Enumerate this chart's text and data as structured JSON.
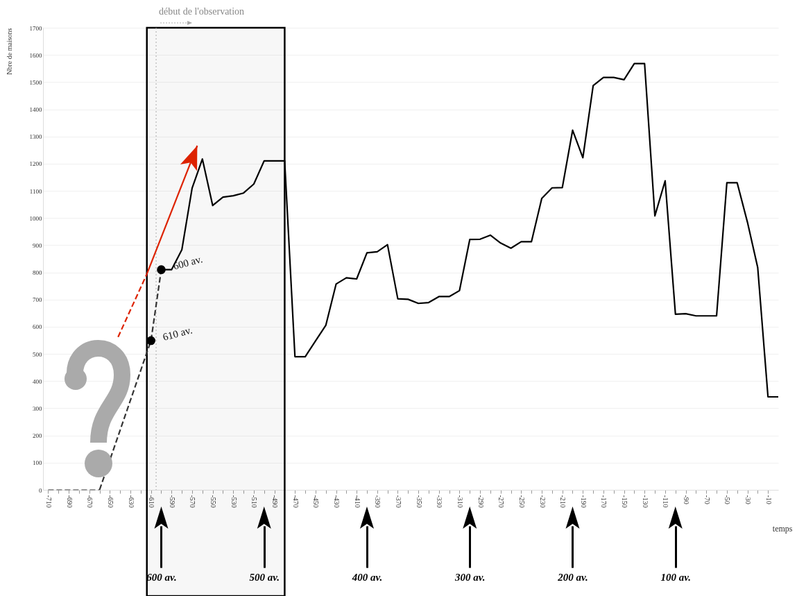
{
  "chart_data": {
    "type": "line",
    "xlabel": "temps",
    "ylabel": "Nbre de maisons",
    "xlim": [
      -715,
      0
    ],
    "ylim": [
      0,
      1700
    ],
    "xticks": [
      -710,
      {
        "value": -700,
        "label": null
      },
      -690,
      {
        "value": -680,
        "label": null
      },
      -670,
      {
        "value": -660,
        "label": null
      },
      -650,
      {
        "value": -640,
        "label": null
      },
      -630,
      {
        "value": -620,
        "label": null
      },
      -610,
      {
        "value": -600,
        "label": null
      },
      -590,
      {
        "value": -580,
        "label": null
      },
      -570,
      {
        "value": -560,
        "label": null
      },
      -550,
      {
        "value": -540,
        "label": null
      },
      -530,
      {
        "value": -520,
        "label": null
      },
      -510,
      {
        "value": -500,
        "label": null
      },
      -490,
      {
        "value": -480,
        "label": null
      },
      -470,
      {
        "value": -460,
        "label": null
      },
      -450,
      {
        "value": -440,
        "label": null
      },
      -430,
      {
        "value": -420,
        "label": null
      },
      -410,
      {
        "value": -400,
        "label": null
      },
      -390,
      {
        "value": -380,
        "label": null
      },
      -370,
      {
        "value": -360,
        "label": null
      },
      -350,
      {
        "value": -340,
        "label": null
      },
      -330,
      {
        "value": -320,
        "label": null
      },
      -310,
      {
        "value": -300,
        "label": null
      },
      -290,
      {
        "value": -280,
        "label": null
      },
      -270,
      {
        "value": -260,
        "label": null
      },
      -250,
      {
        "value": -240,
        "label": null
      },
      -230,
      {
        "value": -220,
        "label": null
      },
      -210,
      {
        "value": -200,
        "label": null
      },
      -190,
      {
        "value": -180,
        "label": null
      },
      -170,
      {
        "value": -160,
        "label": null
      },
      -150,
      {
        "value": -140,
        "label": null
      },
      -130,
      {
        "value": -120,
        "label": null
      },
      -110,
      {
        "value": -100,
        "label": null
      },
      -90,
      {
        "value": -80,
        "label": null
      },
      -70,
      {
        "value": -60,
        "label": null
      },
      -50,
      {
        "value": -40,
        "label": null
      },
      -30,
      {
        "value": -20,
        "label": null
      },
      -10
    ],
    "yticks": [
      0,
      100,
      200,
      300,
      400,
      500,
      600,
      700,
      800,
      900,
      1000,
      1100,
      1200,
      1300,
      1400,
      1500,
      1600,
      1700
    ],
    "grid": "y",
    "series": [
      {
        "color": "#000000",
        "x": [
          -600,
          -590,
          -580,
          -570,
          -560,
          -550,
          -540,
          -530,
          -520,
          -510,
          -500,
          -490,
          -480,
          -470,
          -460,
          -450,
          -440,
          -430,
          -420,
          -410,
          -400,
          -390,
          -380,
          -370,
          -360,
          -350,
          -340,
          -330,
          -320,
          -310,
          -300,
          -290,
          -280,
          -270,
          -260,
          -250,
          -240,
          -230,
          -220,
          -210,
          -200,
          -190,
          -180,
          -170,
          -160,
          -150,
          -140,
          -130,
          -120,
          -110,
          -100,
          -90,
          -80,
          -70,
          -60,
          -50,
          -40,
          -30,
          -20,
          -10,
          0
        ],
        "values": [
          810,
          810,
          883,
          1110,
          1217,
          1046,
          1077,
          1082,
          1092,
          1125,
          1210,
          1210,
          1210,
          490,
          490,
          548,
          605,
          757,
          780,
          776,
          872,
          876,
          902,
          703,
          701,
          686,
          689,
          711,
          711,
          733,
          921,
          922,
          937,
          908,
          889,
          913,
          913,
          1072,
          1111,
          1112,
          1323,
          1222,
          1487,
          1517,
          1517,
          1509,
          1568,
          1568,
          1008,
          1137,
          646,
          648,
          640,
          640,
          640,
          1130,
          1130,
          985,
          818,
          342,
          342
        ]
      },
      {
        "type": "line",
        "color": "#999999",
        "line_style": "dashed",
        "x": [
          -710,
          -660
        ],
        "values": [
          0,
          0
        ]
      },
      {
        "type": "line",
        "color": "#333333",
        "line_style": "dashed",
        "x": [
          -660,
          -610,
          -600
        ],
        "values": [
          0,
          549,
          810
        ]
      },
      {
        "type": "line",
        "color": "#dd2200",
        "line_style": "dashed",
        "x": [
          -642,
          -614
        ],
        "values": [
          562,
          794
        ]
      },
      {
        "type": "line",
        "color": "#dd2200",
        "x": [
          -614,
          -565
        ],
        "values": [
          794,
          1266
        ]
      },
      {
        "type": "scatter",
        "color": "#000000",
        "marker": "circle",
        "x": [
          -610,
          -600
        ],
        "values": [
          549,
          810
        ]
      }
    ],
    "ref_lines": [
      {
        "axis": "x",
        "value": -605,
        "label": "début de l'observation",
        "color": "#aaaaaa",
        "line_style": "dotted"
      }
    ],
    "bands": [
      {
        "axis": "x",
        "from": -614,
        "to": -480,
        "color": "#000000"
      }
    ],
    "annotations": [
      {
        "text": "610 av.",
        "x": -610,
        "y": 549
      },
      {
        "text": "600 av.",
        "x": -600,
        "y": 810
      }
    ],
    "x2lim": [
      -715,
      0
    ],
    "x2ticks": [
      {
        "value": -600,
        "label": "600 av."
      },
      {
        "value": -500,
        "label": "500 av."
      },
      {
        "value": -400,
        "label": "400 av."
      },
      {
        "value": -300,
        "label": "300 av."
      },
      {
        "value": -200,
        "label": "200 av."
      },
      {
        "value": -100,
        "label": "100 av."
      }
    ]
  }
}
